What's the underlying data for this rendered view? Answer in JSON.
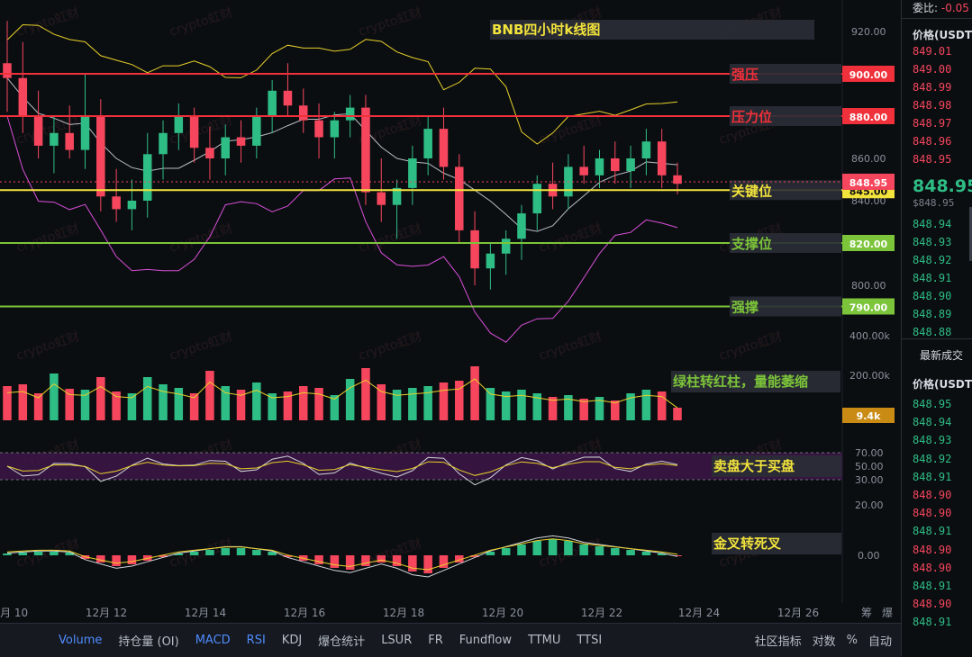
{
  "chart_data": {
    "type": "candlestick",
    "title": "BNB四小时k线图",
    "watermark": "crypto虹财",
    "x_axis_dates": [
      "12月 10",
      "12月 12",
      "12月 14",
      "12月 16",
      "12月 18",
      "12月 20",
      "12月 22",
      "12月 24",
      "12月 26"
    ],
    "price_axis_ticks": [
      "920.00",
      "860.00",
      "840.00",
      "800.00"
    ],
    "current_price": "848.95",
    "candles_ohlc": [
      [
        905,
        925,
        882,
        898
      ],
      [
        898,
        915,
        872,
        880
      ],
      [
        880,
        892,
        860,
        866
      ],
      [
        866,
        880,
        853,
        872
      ],
      [
        872,
        885,
        860,
        864
      ],
      [
        864,
        900,
        855,
        880
      ],
      [
        880,
        888,
        835,
        842
      ],
      [
        842,
        855,
        830,
        836
      ],
      [
        836,
        850,
        826,
        840
      ],
      [
        840,
        872,
        832,
        862
      ],
      [
        862,
        878,
        850,
        872
      ],
      [
        872,
        886,
        864,
        880
      ],
      [
        880,
        884,
        858,
        865
      ],
      [
        865,
        875,
        850,
        860
      ],
      [
        860,
        876,
        852,
        870
      ],
      [
        870,
        878,
        858,
        866
      ],
      [
        866,
        884,
        860,
        880
      ],
      [
        880,
        897,
        872,
        892
      ],
      [
        892,
        905,
        880,
        885
      ],
      [
        885,
        893,
        872,
        878
      ],
      [
        878,
        886,
        860,
        870
      ],
      [
        870,
        882,
        860,
        878
      ],
      [
        878,
        890,
        870,
        884
      ],
      [
        884,
        890,
        838,
        844
      ],
      [
        844,
        860,
        830,
        838
      ],
      [
        838,
        850,
        822,
        846
      ],
      [
        846,
        866,
        838,
        860
      ],
      [
        860,
        880,
        852,
        874
      ],
      [
        874,
        884,
        850,
        856
      ],
      [
        856,
        862,
        820,
        826
      ],
      [
        826,
        835,
        800,
        808
      ],
      [
        808,
        820,
        798,
        815
      ],
      [
        815,
        826,
        805,
        822
      ],
      [
        822,
        838,
        812,
        834
      ],
      [
        834,
        852,
        826,
        848
      ],
      [
        848,
        858,
        836,
        842
      ],
      [
        842,
        862,
        836,
        856
      ],
      [
        856,
        866,
        848,
        852
      ],
      [
        852,
        864,
        846,
        860
      ],
      [
        860,
        868,
        848,
        854
      ],
      [
        854,
        866,
        846,
        860
      ],
      [
        860,
        874,
        852,
        868
      ],
      [
        868,
        874,
        846,
        852
      ],
      [
        852,
        858,
        843,
        848
      ]
    ],
    "horizontal_levels": [
      {
        "label": "强压",
        "price": "900.00",
        "color": "#f0303a"
      },
      {
        "label": "压力位",
        "price": "880.00",
        "color": "#f0303a"
      },
      {
        "label": "关键位",
        "price": "845.00",
        "color": "#f2e33c"
      },
      {
        "label": "支撑位",
        "price": "820.00",
        "color": "#7cc43a"
      },
      {
        "label": "强撑",
        "price": "790.00",
        "color": "#7cc43a"
      }
    ],
    "volume_axis_ticks": [
      "400.00k",
      "200.00k"
    ],
    "volume_last": "9.4k",
    "volume_annotation": "绿柱转红柱，量能萎缩",
    "rsi_axis_ticks": [
      "70.00",
      "50.00",
      "30.00",
      "20.00"
    ],
    "rsi_annotation": "卖盘大于买盘",
    "macd_axis_ticks": [
      "0.00"
    ],
    "macd_annotation": "金叉转死叉"
  },
  "toolbar": {
    "items": [
      "Volume",
      "持仓量 (OI)",
      "MACD",
      "RSI",
      "KDJ",
      "爆仓统计",
      "LSUR",
      "FR",
      "Fundflow",
      "TTMU",
      "TTSI"
    ],
    "right_items": [
      "社区指标",
      "对数",
      "%",
      "自动"
    ],
    "corner_items": [
      "筹",
      "爆"
    ]
  },
  "orderbook": {
    "top_label": "委比:",
    "top_value": "-0.05",
    "price_header": "价格(USDT",
    "asks": [
      "849.01",
      "849.00",
      "848.99",
      "848.98",
      "848.97",
      "848.96",
      "848.95"
    ],
    "last_price": "848.95",
    "last_price_sub": "$848.95",
    "bids": [
      "848.94",
      "848.93",
      "848.92",
      "848.91",
      "848.90",
      "848.89",
      "848.88"
    ],
    "trades_title": "最新成交",
    "trades_header": "价格(USDT",
    "trades": [
      {
        "p": "848.95",
        "c": "green"
      },
      {
        "p": "848.94",
        "c": "green"
      },
      {
        "p": "848.93",
        "c": "green"
      },
      {
        "p": "848.92",
        "c": "green"
      },
      {
        "p": "848.91",
        "c": "green"
      },
      {
        "p": "848.90",
        "c": "red"
      },
      {
        "p": "848.90",
        "c": "red"
      },
      {
        "p": "848.91",
        "c": "green"
      },
      {
        "p": "848.90",
        "c": "red"
      },
      {
        "p": "848.90",
        "c": "red"
      },
      {
        "p": "848.91",
        "c": "green"
      },
      {
        "p": "848.90",
        "c": "red"
      },
      {
        "p": "848.91",
        "c": "green"
      }
    ]
  }
}
